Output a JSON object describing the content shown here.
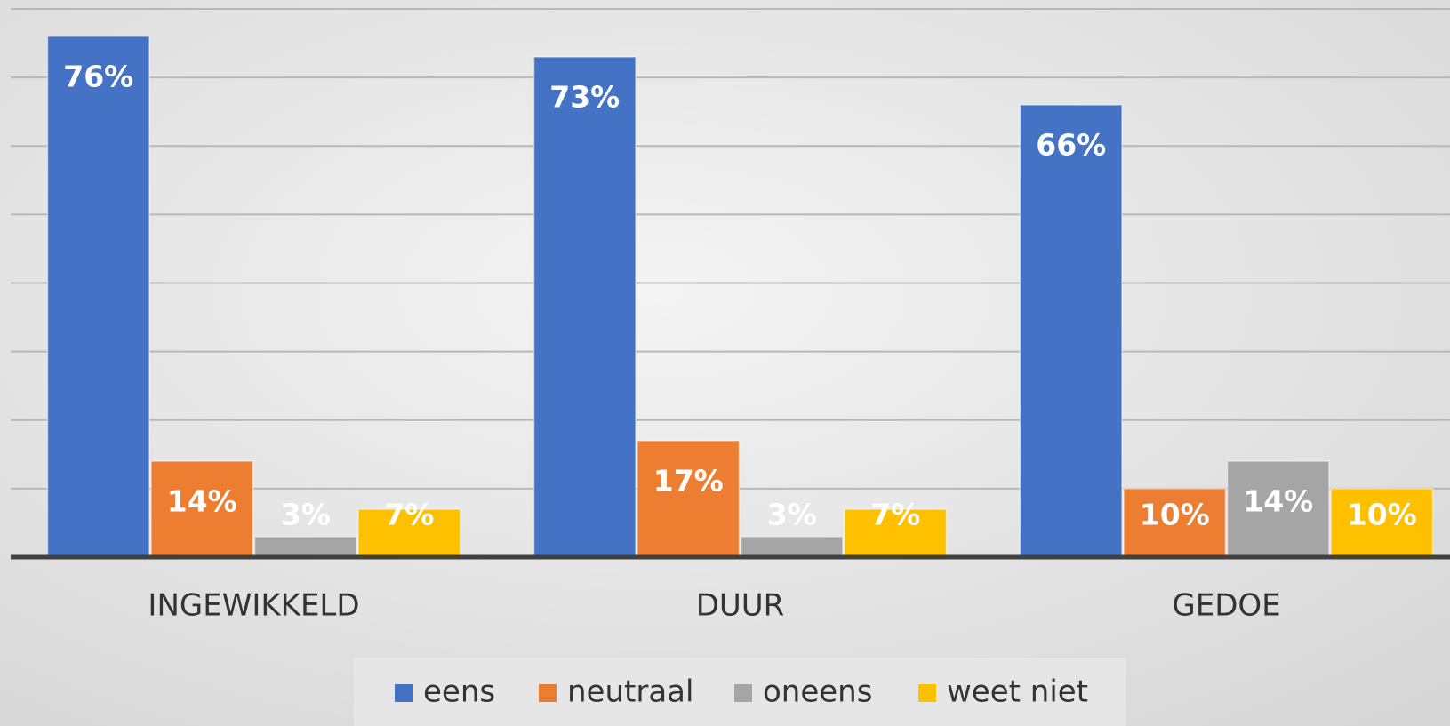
{
  "chart_data": {
    "type": "bar",
    "categories": [
      "INGEWIKKELD",
      "DUUR",
      "GEDOE"
    ],
    "series": [
      {
        "name": "eens",
        "color": "#4472c4",
        "values": [
          76,
          73,
          66
        ],
        "value_labels": [
          "76%",
          "73%",
          "66%"
        ]
      },
      {
        "name": "neutraal",
        "color": "#ed7d31",
        "values": [
          14,
          17,
          10
        ],
        "value_labels": [
          "14%",
          "17%",
          "10%"
        ]
      },
      {
        "name": "oneens",
        "color": "#a5a5a5",
        "values": [
          3,
          3,
          14
        ],
        "value_labels": [
          "3%",
          "3%",
          "14%"
        ]
      },
      {
        "name": "weet niet",
        "color": "#ffc000",
        "values": [
          7,
          7,
          10
        ],
        "value_labels": [
          "7%",
          "7%",
          "10%"
        ]
      }
    ],
    "ylim": [
      0,
      80
    ],
    "yticks": [
      0,
      10,
      20,
      30,
      40,
      50,
      60,
      70,
      80
    ],
    "grid": true,
    "legend": "bottom"
  }
}
